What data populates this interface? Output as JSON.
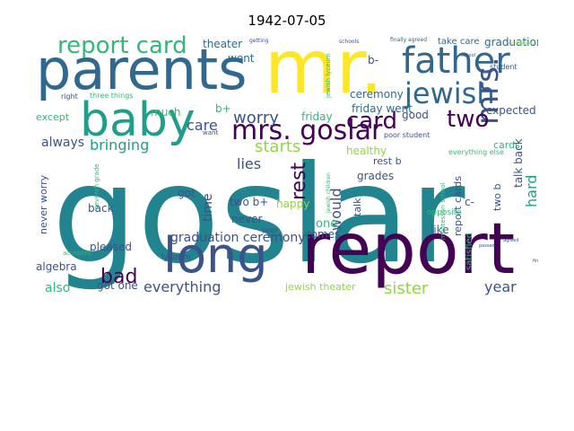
{
  "title": "1942-07-05",
  "colors": {
    "teal": "#22848e",
    "dark_purple": "#440154",
    "indigo": "#3b528b",
    "slate": "#31688e",
    "green": "#35b779",
    "lime": "#90d743",
    "yellow": "#fde725",
    "sea": "#1f9e89"
  },
  "words": [
    {
      "text": "goslar",
      "color": "teal"
    },
    {
      "text": "report",
      "color": "dark_purple"
    },
    {
      "text": "mr.",
      "color": "yellow"
    },
    {
      "text": "parents",
      "color": "slate"
    },
    {
      "text": "baby",
      "color": "sea"
    },
    {
      "text": "long",
      "color": "indigo"
    },
    {
      "text": "father",
      "color": "slate"
    },
    {
      "text": "jewish",
      "color": "slate"
    },
    {
      "text": "mrs. goslar",
      "color": "dark_purple"
    },
    {
      "text": "report card",
      "color": "green"
    },
    {
      "text": "mrs.",
      "color": "indigo"
    },
    {
      "text": "card",
      "color": "dark_purple"
    },
    {
      "text": "two",
      "color": "dark_purple"
    },
    {
      "text": "worry",
      "color": "indigo"
    },
    {
      "text": "rest",
      "color": "dark_purple"
    },
    {
      "text": "bad",
      "color": "dark_purple"
    },
    {
      "text": "everything",
      "color": "indigo"
    },
    {
      "text": "sister",
      "color": "lime"
    },
    {
      "text": "year",
      "color": "indigo"
    },
    {
      "text": "care",
      "color": "indigo"
    },
    {
      "text": "lies",
      "color": "indigo"
    },
    {
      "text": "starts",
      "color": "lime"
    },
    {
      "text": "bringing",
      "color": "sea"
    },
    {
      "text": "always",
      "color": "indigo"
    },
    {
      "text": "time",
      "color": "indigo"
    },
    {
      "text": "would",
      "color": "indigo"
    },
    {
      "text": "hard",
      "color": "sea"
    },
    {
      "text": "graduation ceremony",
      "color": "indigo"
    },
    {
      "text": "graduation",
      "color": "slate"
    },
    {
      "text": "ceremony",
      "color": "slate"
    },
    {
      "text": "theater",
      "color": "slate"
    },
    {
      "text": "went",
      "color": "slate"
    },
    {
      "text": "friday went",
      "color": "slate"
    },
    {
      "text": "b-",
      "color": "indigo"
    },
    {
      "text": "b+",
      "color": "green"
    },
    {
      "text": "much",
      "color": "green"
    },
    {
      "text": "except",
      "color": "green"
    },
    {
      "text": "good",
      "color": "indigo"
    },
    {
      "text": "expected",
      "color": "indigo"
    },
    {
      "text": "cards",
      "color": "green"
    },
    {
      "text": "friday",
      "color": "green"
    },
    {
      "text": "healthy",
      "color": "lime"
    },
    {
      "text": "grades",
      "color": "indigo"
    },
    {
      "text": "two b+",
      "color": "indigo"
    },
    {
      "text": "never",
      "color": "indigo"
    },
    {
      "text": "got",
      "color": "indigo"
    },
    {
      "text": "back",
      "color": "indigo"
    },
    {
      "text": "happy",
      "color": "lime"
    },
    {
      "text": "pleased",
      "color": "indigo"
    },
    {
      "text": "algebra",
      "color": "indigo"
    },
    {
      "text": "also",
      "color": "green"
    },
    {
      "text": "got one",
      "color": "indigo"
    },
    {
      "text": "comes",
      "color": "indigo"
    },
    {
      "text": "one",
      "color": "green"
    },
    {
      "text": "like",
      "color": "slate"
    },
    {
      "text": "jewish theater",
      "color": "lime"
    },
    {
      "text": "talk back",
      "color": "indigo"
    },
    {
      "text": "rest b",
      "color": "indigo"
    },
    {
      "text": "two b",
      "color": "indigo"
    },
    {
      "text": "c-",
      "color": "indigo"
    },
    {
      "text": "report cards",
      "color": "indigo"
    },
    {
      "text": "satisfied",
      "color": "green"
    },
    {
      "text": "never worry",
      "color": "indigo"
    },
    {
      "text": "talk",
      "color": "indigo"
    },
    {
      "text": "take care",
      "color": "slate"
    },
    {
      "text": "lyceum",
      "color": "indigo"
    },
    {
      "text": "opposite",
      "color": "green"
    },
    {
      "text": "student",
      "color": "indigo"
    },
    {
      "text": "poor student",
      "color": "indigo"
    },
    {
      "text": "montessori school",
      "color": "green"
    },
    {
      "text": "everything else",
      "color": "green"
    },
    {
      "text": "jewish lyceum",
      "color": "green"
    },
    {
      "text": "three things",
      "color": "green"
    },
    {
      "text": "right",
      "color": "indigo"
    },
    {
      "text": "seventh grade",
      "color": "green"
    },
    {
      "text": "accepted",
      "color": "green"
    },
    {
      "text": "poor",
      "color": "indigo"
    },
    {
      "text": "want",
      "color": "indigo"
    },
    {
      "text": "jewish children",
      "color": "green"
    },
    {
      "text": "conditional",
      "color": "lime"
    },
    {
      "text": "finally agreed",
      "color": "slate"
    },
    {
      "text": "schools",
      "color": "indigo"
    },
    {
      "text": "getting",
      "color": "indigo"
    },
    {
      "text": "passed",
      "color": "indigo"
    },
    {
      "text": "school",
      "color": "indigo"
    },
    {
      "text": "agreed",
      "color": "indigo"
    },
    {
      "text": "finally",
      "color": "indigo"
    }
  ]
}
